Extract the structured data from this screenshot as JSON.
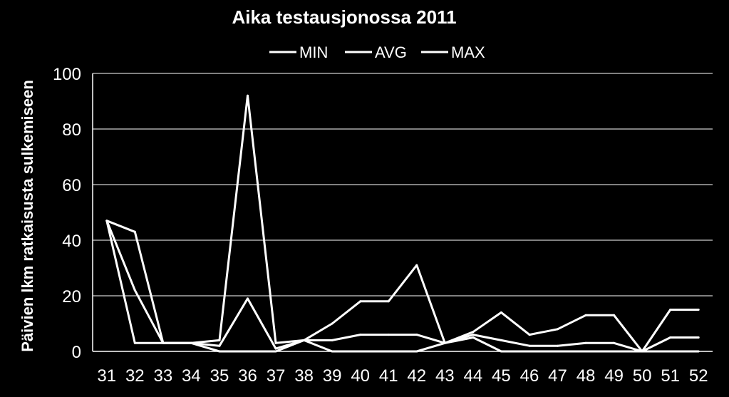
{
  "chart_data": {
    "type": "line",
    "title": "Aika testausjonossa 2011",
    "xlabel": "",
    "ylabel": "Päivien lkm ratkaisusta sulkemiseen",
    "ylim": [
      0,
      100
    ],
    "yticks": [
      0,
      20,
      40,
      60,
      80,
      100
    ],
    "grid": true,
    "legend_position": "top",
    "categories": [
      "31",
      "32",
      "33",
      "34",
      "35",
      "36",
      "37",
      "38",
      "39",
      "40",
      "41",
      "42",
      "43",
      "44",
      "45",
      "46",
      "47",
      "48",
      "49",
      "50",
      "51",
      "52"
    ],
    "series": [
      {
        "name": "MIN",
        "color": "#ffffff",
        "values": [
          47,
          3,
          3,
          3,
          0,
          0,
          0,
          4,
          0,
          0,
          0,
          0,
          3,
          5,
          0,
          0,
          0,
          0,
          0,
          0,
          0,
          0
        ]
      },
      {
        "name": "AVG",
        "color": "#ffffff",
        "values": [
          47,
          22,
          3,
          3,
          2,
          19,
          1,
          4,
          4,
          6,
          6,
          6,
          3,
          6,
          4,
          2,
          2,
          3,
          3,
          0,
          5,
          5
        ]
      },
      {
        "name": "MAX",
        "color": "#ffffff",
        "values": [
          47,
          43,
          3,
          3,
          4,
          92,
          3,
          4,
          10,
          18,
          18,
          31,
          3,
          7,
          14,
          6,
          8,
          13,
          13,
          0,
          15,
          15
        ]
      }
    ]
  }
}
